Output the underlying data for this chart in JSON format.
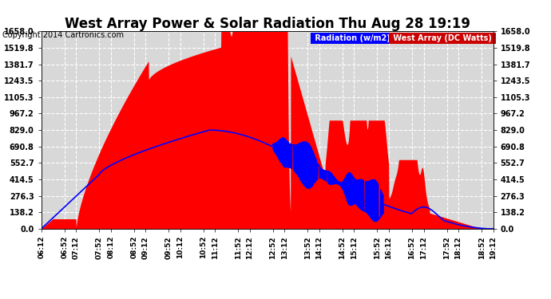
{
  "title": "West Array Power & Solar Radiation Thu Aug 28 19:19",
  "copyright": "Copyright 2014 Cartronics.com",
  "legend_radiation": "Radiation (w/m2)",
  "legend_west": "West Array (DC Watts)",
  "ymax": 1658.0,
  "yticks": [
    0.0,
    138.2,
    276.3,
    414.5,
    552.7,
    690.8,
    829.0,
    967.2,
    1105.3,
    1243.5,
    1381.7,
    1519.8,
    1658.0
  ],
  "xtick_labels": [
    "06:12",
    "06:52",
    "07:12",
    "07:52",
    "08:12",
    "08:52",
    "09:12",
    "09:52",
    "10:12",
    "10:52",
    "11:12",
    "11:52",
    "12:12",
    "12:52",
    "13:12",
    "13:52",
    "14:12",
    "14:52",
    "15:12",
    "15:52",
    "16:12",
    "16:52",
    "17:12",
    "17:52",
    "18:12",
    "18:52",
    "19:12"
  ],
  "bg_color": "#ffffff",
  "plot_bg_color": "#d8d8d8",
  "grid_color": "#ffffff",
  "grid_style": "--",
  "radiation_color": "#0000ff",
  "west_color": "#ff0000",
  "title_fontsize": 12,
  "copyright_fontsize": 7,
  "legend_bg_radiation": "#0000ff",
  "legend_bg_west": "#cc0000",
  "legend_text_color": "#ffffff"
}
